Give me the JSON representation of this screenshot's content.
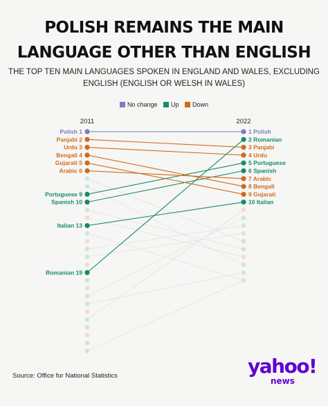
{
  "title": "POLISH REMAINS THE MAIN LANGUAGE OTHER THAN ENGLISH",
  "subtitle": "THE TOP TEN MAIN LANGUAGES SPOKEN IN ENGLAND AND WALES, EXCLUDING ENGLISH (ENGLISH OR WELSH IN WALES)",
  "source": "Source: Office for National Statistics",
  "logo": {
    "brand": "yahoo!",
    "product": "news"
  },
  "legend": [
    {
      "label": "No change",
      "key": "nochange"
    },
    {
      "label": "Up",
      "key": "up"
    },
    {
      "label": "Down",
      "key": "down"
    }
  ],
  "colors": {
    "nochange": "#7b7cc0",
    "up": "#168c68",
    "down": "#cf6b1c",
    "faded_up": "#cfe4dc",
    "faded_down": "#f1dccb",
    "faded_line": "#e2e2e2"
  },
  "chart_data": {
    "type": "slope",
    "x": [
      "2011",
      "2022"
    ],
    "series": [
      {
        "name": "Polish",
        "rank_2011": 1,
        "rank_2022": 1,
        "change": "nochange"
      },
      {
        "name": "Romanian",
        "rank_2011": 19,
        "rank_2022": 2,
        "change": "up"
      },
      {
        "name": "Panjabi",
        "rank_2011": 2,
        "rank_2022": 3,
        "change": "down"
      },
      {
        "name": "Urdu",
        "rank_2011": 3,
        "rank_2022": 4,
        "change": "down"
      },
      {
        "name": "Portuguese",
        "rank_2011": 9,
        "rank_2022": 5,
        "change": "up"
      },
      {
        "name": "Spanish",
        "rank_2011": 10,
        "rank_2022": 6,
        "change": "up"
      },
      {
        "name": "Arabic",
        "rank_2011": 6,
        "rank_2022": 7,
        "change": "down"
      },
      {
        "name": "Bengali",
        "rank_2011": 4,
        "rank_2022": 8,
        "change": "down"
      },
      {
        "name": "Gujarati",
        "rank_2011": 5,
        "rank_2022": 9,
        "change": "down"
      },
      {
        "name": "Italian",
        "rank_2011": 13,
        "rank_2022": 10,
        "change": "up"
      }
    ],
    "left_labels": [
      "Polish 1",
      "Panjabi 2",
      "Urdu 3",
      "Bengali 4",
      "Gujarati 5",
      "Arabic 6",
      "Portuguese 9",
      "Spanish 10",
      "Italian 13",
      "Romanian 19"
    ],
    "right_labels": [
      "1 Polish",
      "2 Romanian",
      "3 Panjabi",
      "4 Urdu",
      "5 Portuguese",
      "6 Spanish",
      "7 Arabic",
      "8 Bengali",
      "9 Gujarati",
      "10 Italian"
    ],
    "other_ranks_2011": [
      7,
      8,
      11,
      12,
      14,
      15,
      16,
      17,
      18,
      20,
      21,
      22,
      23,
      24,
      25,
      26,
      27,
      28,
      29
    ],
    "other_ranks_2022": [
      11,
      12,
      13,
      14,
      15,
      16,
      17,
      18,
      19,
      20
    ],
    "faint_links": [
      {
        "from_2011": 7,
        "to_2022": 15,
        "change": "down"
      },
      {
        "from_2011": 8,
        "to_2022": 18,
        "change": "down"
      },
      {
        "from_2011": 11,
        "to_2022": 16,
        "change": "down"
      },
      {
        "from_2011": 12,
        "to_2022": 17,
        "change": "down"
      },
      {
        "from_2011": 14,
        "to_2022": 20,
        "change": "down"
      },
      {
        "from_2011": 16,
        "to_2022": 13,
        "change": "up"
      },
      {
        "from_2011": 17,
        "to_2022": 14,
        "change": "up"
      },
      {
        "from_2011": 22,
        "to_2022": 12,
        "change": "up"
      },
      {
        "from_2011": 23,
        "to_2022": 19,
        "change": "up"
      },
      {
        "from_2011": 25,
        "to_2022": 11,
        "change": "up"
      },
      {
        "from_2011": 29,
        "to_2022": 20,
        "change": "up"
      }
    ]
  }
}
